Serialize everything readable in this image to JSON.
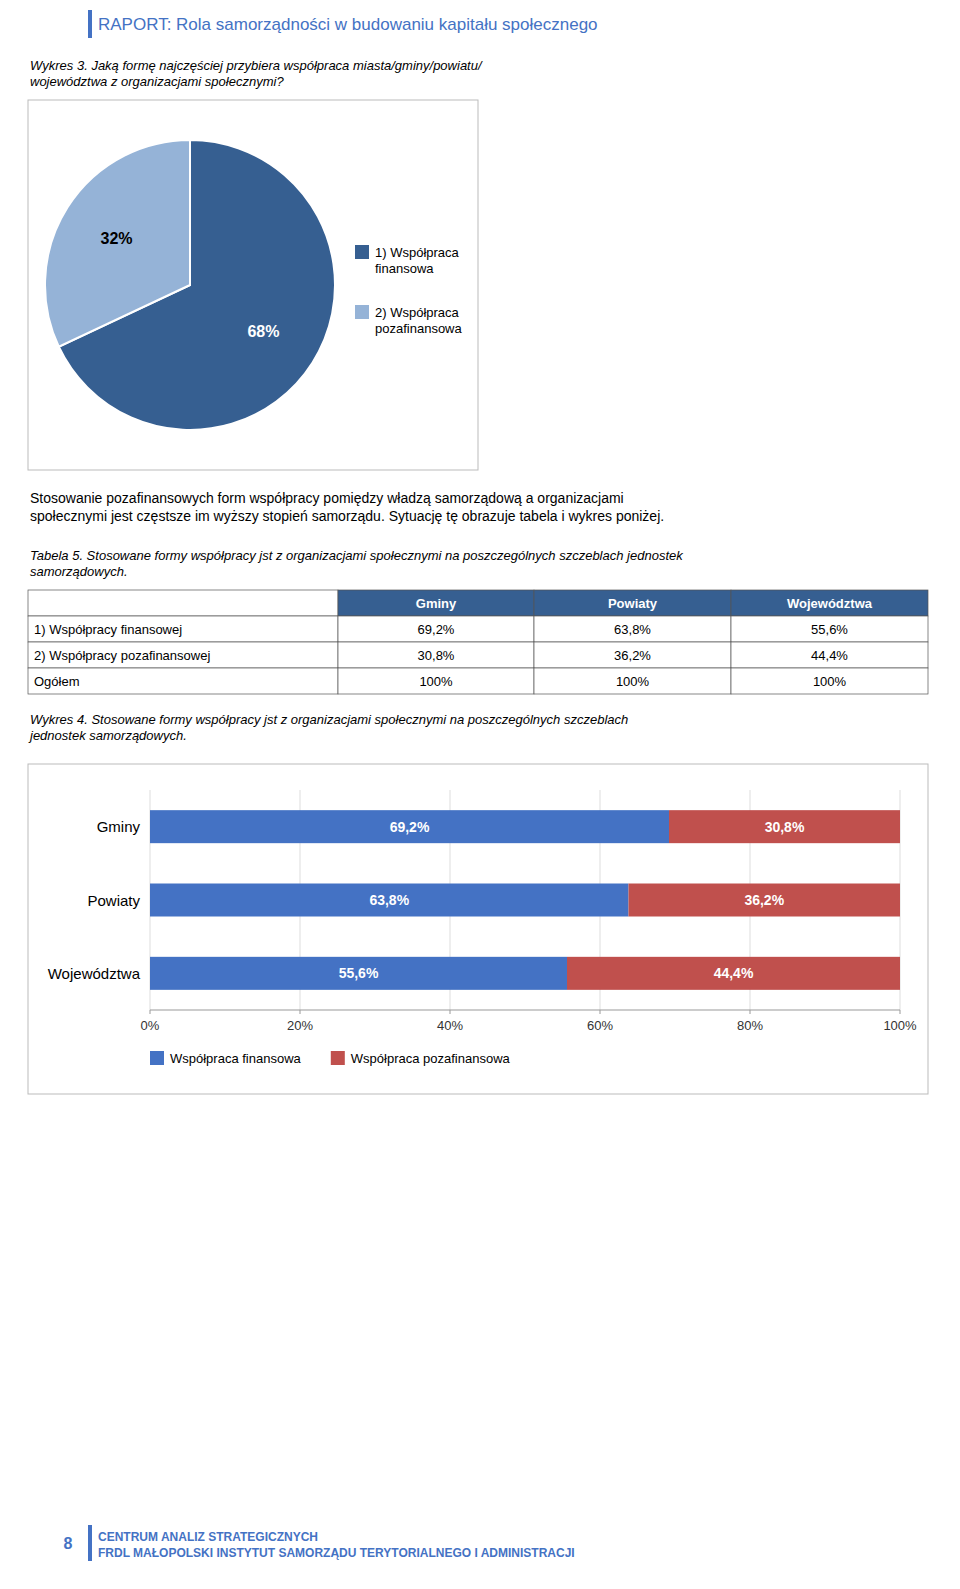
{
  "page": {
    "header": "RAPORT: Rola samorządności w budowaniu kapitału społecznego",
    "color": "#4472C4",
    "body_text": [
      "Stosowanie pozafinansowych form współpracy pomiędzy władzą samorządową a organizacjami",
      "społecznymi jest częstsze im wyższy stopień samorządu. Sytuację tę obrazuje tabela i wykres poniżej."
    ],
    "footer_number": "8",
    "footer_lines": [
      "CENTRUM ANALIZ STRATEGICZNYCH",
      "FRDL MAŁOPOLSKI INSTYTUT SAMORZĄDU TERYTORIALNEGO I ADMINISTRACJI"
    ]
  },
  "chart_data": [
    {
      "type": "pie",
      "title": "Wykres 3. Jaką formę najczęściej przybiera współpraca miasta/gminy/powiatu/\nwojewództwa z organizacjami społecznymi?",
      "categories": [
        "1) Współpraca\nfinansowa",
        "2) Współpraca\npozafinansowa"
      ],
      "values": [
        68,
        32
      ],
      "value_labels": [
        "68%",
        "32%"
      ],
      "colors": [
        "#365F91",
        "#95B3D7"
      ],
      "data_labels": true,
      "legend": "right"
    },
    {
      "type": "table",
      "title": "Tabela 5. Stosowane formy współpracy jst z organizacjami społecznymi na poszczególnych szczeblach jednostek\nsamorządowych.",
      "categories": [
        "Gminy",
        "Powiaty",
        "Województwa"
      ],
      "series": [
        {
          "name": "1) Współpracy finansowej",
          "values": [
            69.2,
            63.8,
            55.6
          ],
          "value_labels": [
            "69,2%",
            "63,8%",
            "55,6%"
          ]
        },
        {
          "name": "2) Współpracy pozafinansowej",
          "values": [
            30.8,
            36.2,
            44.4
          ],
          "value_labels": [
            "30,8%",
            "36,2%",
            "44,4%"
          ]
        },
        {
          "name": "Ogółem",
          "values": [
            100,
            100,
            100
          ],
          "value_labels": [
            "100%",
            "100%",
            "100%"
          ]
        }
      ],
      "color": "#365F91",
      "data_labels": true
    },
    {
      "type": "bar",
      "title": "Wykres 4. Stosowane formy współpracy jst z organizacjami społecznymi na poszczególnych szczeblach\njednostek samorządowych.",
      "orientation": "horizontal",
      "stacked": true,
      "categories": [
        "Województwa",
        "Powiaty",
        "Gminy"
      ],
      "series": [
        {
          "name": "Współpraca finansowa",
          "color": "#4472C4",
          "values": [
            55.6,
            63.8,
            69.2
          ],
          "value_labels": [
            "55,6%",
            "63,8%",
            "69,2%"
          ]
        },
        {
          "name": "Współpraca pozafinansowa",
          "color": "#C0504D",
          "values": [
            44.4,
            36.2,
            30.8
          ],
          "value_labels": [
            "44,4%",
            "36,2%",
            "30,8%"
          ]
        }
      ],
      "xlim": [
        0,
        100
      ],
      "xticks": [
        {
          "value": 0,
          "label": "0%"
        },
        {
          "value": 20,
          "label": "20%"
        },
        {
          "value": 40,
          "label": "40%"
        },
        {
          "value": 60,
          "label": "60%"
        },
        {
          "value": 80,
          "label": "80%"
        },
        {
          "value": 100,
          "label": "100%"
        }
      ],
      "grid": true,
      "data_labels": true,
      "legend": "bottom"
    }
  ]
}
